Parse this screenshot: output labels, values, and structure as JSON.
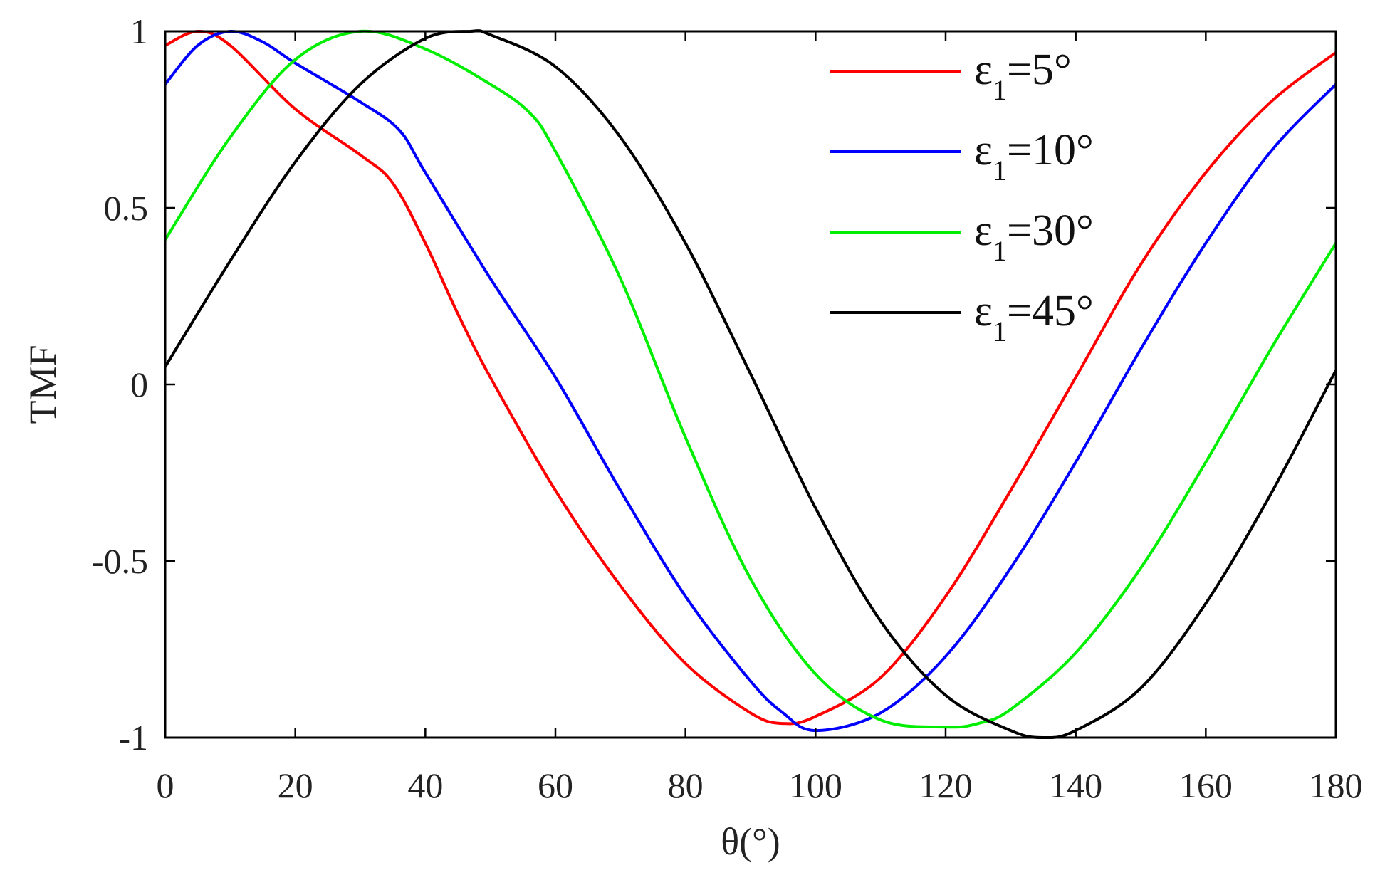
{
  "chart_data": {
    "type": "line",
    "xlabel": "θ(°)",
    "ylabel": "TMF",
    "xlim": [
      0,
      180
    ],
    "ylim": [
      -1,
      1
    ],
    "xticks": [
      0,
      20,
      40,
      60,
      80,
      100,
      120,
      140,
      160,
      180
    ],
    "yticks": [
      -1,
      -0.5,
      0,
      0.5,
      1
    ],
    "xtick_labels": [
      "0",
      "20",
      "40",
      "60",
      "80",
      "100",
      "120",
      "140",
      "160",
      "180"
    ],
    "ytick_labels": [
      "-1",
      "-0.5",
      "0",
      "0.5",
      "1"
    ],
    "grid": false,
    "legend_position": "top-right",
    "series": [
      {
        "name_prefix": "ε",
        "name_sub": "1",
        "name_suffix": "=5°",
        "color": "#ff0000",
        "x": [
          0,
          5,
          10,
          20,
          30,
          35,
          40,
          45,
          50,
          60,
          70,
          80,
          90,
          95,
          100,
          110,
          120,
          130,
          140,
          150,
          160,
          170,
          180
        ],
        "y": [
          0.96,
          1.0,
          0.96,
          0.78,
          0.65,
          0.57,
          0.4,
          0.2,
          0.02,
          -0.3,
          -0.57,
          -0.79,
          -0.93,
          -0.96,
          -0.94,
          -0.83,
          -0.6,
          -0.3,
          0.02,
          0.34,
          0.6,
          0.8,
          0.94
        ]
      },
      {
        "name_prefix": "ε",
        "name_sub": "1",
        "name_suffix": "=10°",
        "color": "#0000ff",
        "x": [
          0,
          5,
          10,
          15,
          20,
          30,
          36,
          40,
          50,
          60,
          70,
          80,
          90,
          95,
          100,
          110,
          120,
          130,
          140,
          150,
          160,
          170,
          180
        ],
        "y": [
          0.85,
          0.96,
          1.0,
          0.97,
          0.91,
          0.8,
          0.72,
          0.6,
          0.3,
          0.02,
          -0.3,
          -0.6,
          -0.84,
          -0.93,
          -0.98,
          -0.93,
          -0.77,
          -0.52,
          -0.22,
          0.1,
          0.4,
          0.66,
          0.85
        ]
      },
      {
        "name_prefix": "ε",
        "name_sub": "1",
        "name_suffix": "=30°",
        "color": "#00ee00",
        "x": [
          0,
          10,
          20,
          30,
          40,
          50,
          56,
          60,
          70,
          80,
          90,
          100,
          110,
          120,
          125,
          130,
          140,
          150,
          160,
          170,
          180
        ],
        "y": [
          0.41,
          0.7,
          0.92,
          1.0,
          0.95,
          0.85,
          0.77,
          0.66,
          0.3,
          -0.15,
          -0.55,
          -0.82,
          -0.95,
          -0.97,
          -0.96,
          -0.92,
          -0.76,
          -0.52,
          -0.22,
          0.1,
          0.4
        ]
      },
      {
        "name_prefix": "ε",
        "name_sub": "1",
        "name_suffix": "=45°",
        "color": "#000000",
        "x": [
          0,
          10,
          20,
          30,
          40,
          47,
          50,
          60,
          70,
          80,
          90,
          100,
          110,
          120,
          130,
          135,
          140,
          150,
          160,
          170,
          180
        ],
        "y": [
          0.05,
          0.35,
          0.63,
          0.85,
          0.98,
          1.0,
          0.99,
          0.9,
          0.7,
          0.4,
          0.03,
          -0.35,
          -0.67,
          -0.88,
          -0.98,
          -1.0,
          -0.98,
          -0.86,
          -0.62,
          -0.31,
          0.04
        ]
      }
    ]
  }
}
